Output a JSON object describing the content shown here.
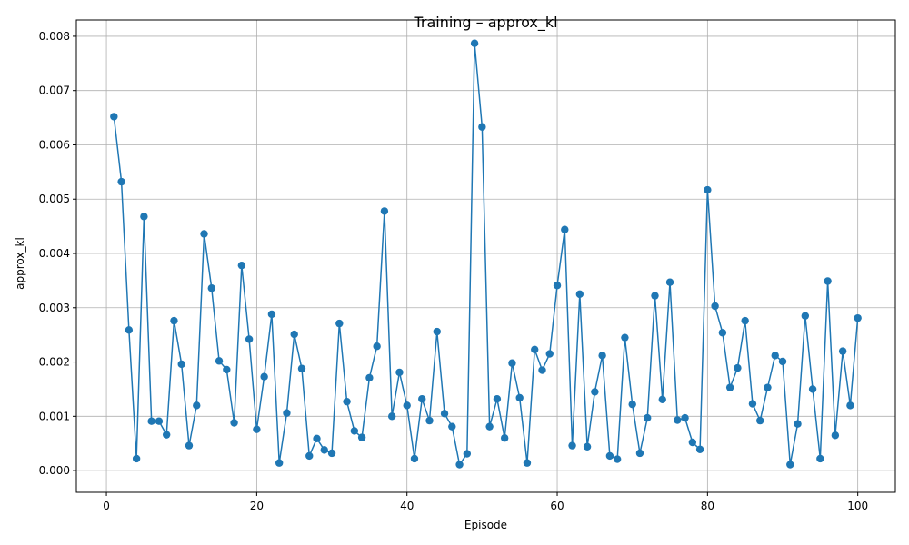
{
  "chart_data": {
    "type": "line",
    "title": "Training – approx_kl",
    "xlabel": "Episode",
    "ylabel": "approx_kl",
    "xlim": [
      -4,
      105
    ],
    "ylim": [
      -0.0004,
      0.0083
    ],
    "grid": true,
    "color": "#1f77b4",
    "x_ticks": [
      0,
      20,
      40,
      60,
      80,
      100
    ],
    "x_tick_labels": [
      "0",
      "20",
      "40",
      "60",
      "80",
      "100"
    ],
    "y_ticks": [
      0,
      0.001,
      0.002,
      0.003,
      0.004,
      0.005,
      0.006,
      0.007,
      0.008
    ],
    "y_tick_labels": [
      "0.000",
      "0.001",
      "0.002",
      "0.003",
      "0.004",
      "0.005",
      "0.006",
      "0.007",
      "0.008"
    ],
    "series": [
      {
        "marker": "circle",
        "x": [
          1,
          2,
          3,
          4,
          5,
          6,
          7,
          8,
          9,
          10,
          11,
          12,
          13,
          14,
          15,
          16,
          17,
          18,
          19,
          20,
          21,
          22,
          23,
          24,
          25,
          26,
          27,
          28,
          29,
          30,
          31,
          32,
          33,
          34,
          35,
          36,
          37,
          38,
          39,
          40,
          41,
          42,
          43,
          44,
          45,
          46,
          47,
          48,
          49,
          50,
          51,
          52,
          53,
          54,
          55,
          56,
          57,
          58,
          59,
          60,
          61,
          62,
          63,
          64,
          65,
          66,
          67,
          68,
          69,
          70,
          71,
          72,
          73,
          74,
          75,
          76,
          77,
          78,
          79,
          80,
          81,
          82,
          83,
          84,
          85,
          86,
          87,
          88,
          89,
          90,
          91,
          92,
          93,
          94,
          95,
          96,
          97,
          98,
          99,
          100
        ],
        "y": [
          0.00652,
          0.00532,
          0.00259,
          0.00022,
          0.00468,
          0.00091,
          0.00091,
          0.00066,
          0.00276,
          0.00196,
          0.00046,
          0.0012,
          0.00436,
          0.00336,
          0.00202,
          0.00186,
          0.00088,
          0.00378,
          0.00242,
          0.00076,
          0.00173,
          0.00288,
          0.00014,
          0.00106,
          0.00251,
          0.00188,
          0.00027,
          0.00059,
          0.00038,
          0.00032,
          0.00271,
          0.00127,
          0.00073,
          0.00061,
          0.00171,
          0.00229,
          0.00478,
          0.001,
          0.00181,
          0.0012,
          0.00022,
          0.00132,
          0.00092,
          0.00256,
          0.00105,
          0.00081,
          0.00011,
          0.00031,
          0.00787,
          0.00633,
          0.00081,
          0.00132,
          0.0006,
          0.00198,
          0.00134,
          0.00014,
          0.00223,
          0.00185,
          0.00215,
          0.00341,
          0.00444,
          0.00046,
          0.00325,
          0.00044,
          0.00145,
          0.00212,
          0.00027,
          0.00021,
          0.00245,
          0.00122,
          0.00032,
          0.00097,
          0.00322,
          0.00131,
          0.00347,
          0.00093,
          0.00097,
          0.00052,
          0.00039,
          0.00517,
          0.00303,
          0.00254,
          0.00153,
          0.00189,
          0.00276,
          0.00123,
          0.00092,
          0.00153,
          0.00212,
          0.00201,
          0.00011,
          0.00086,
          0.00285,
          0.0015,
          0.00022,
          0.00349,
          0.00065,
          0.0022,
          0.0012,
          0.00281
        ]
      }
    ]
  }
}
